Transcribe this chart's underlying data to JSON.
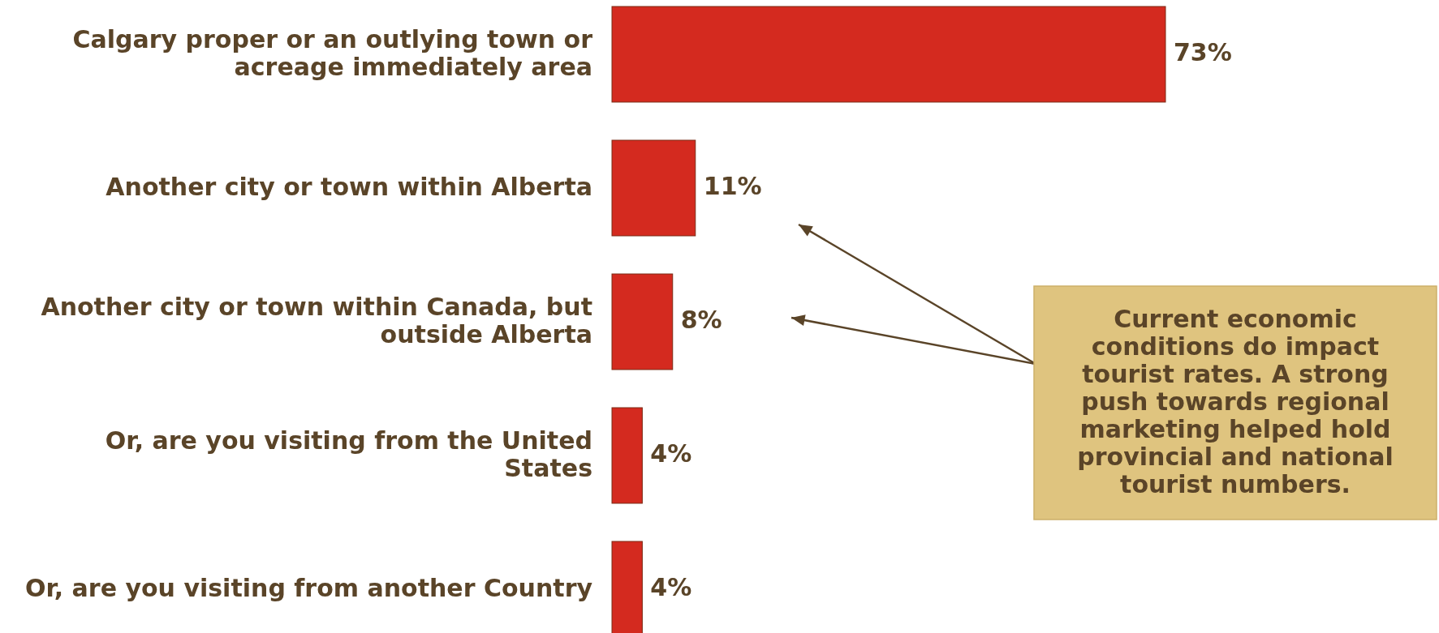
{
  "chart_data": {
    "type": "bar",
    "orientation": "horizontal",
    "categories": [
      "Calgary proper or an outlying town or acreage immediately area",
      "Another city or town within Alberta",
      "Another city or town within Canada, but outside Alberta",
      "Or, are you visiting from the United States",
      "Or, are you visiting from another Country"
    ],
    "values": [
      73,
      11,
      8,
      4,
      4
    ],
    "value_labels": [
      "73%",
      "11%",
      "8%",
      "4%",
      "4%"
    ],
    "color": "#d42a1f",
    "annotations": [
      "Current economic conditions do impact tourist rates. A strong push towards regional marketing helped hold provincial and national tourist numbers."
    ]
  }
}
